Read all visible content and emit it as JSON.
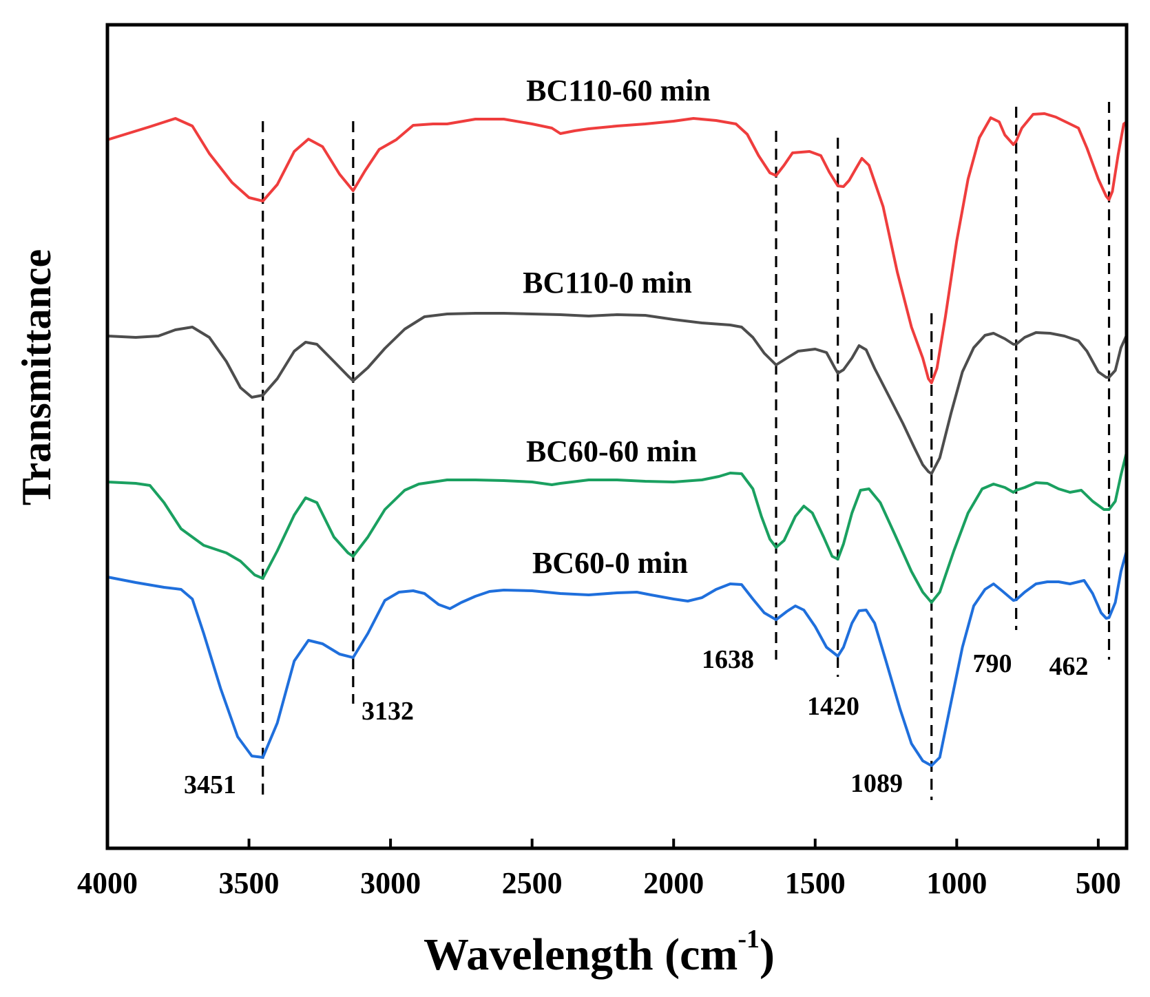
{
  "chart_data": {
    "type": "line",
    "xlabel": "Wavelength (cm",
    "xlabel_sup": "-1",
    "xlabel_close": ")",
    "ylabel": "Transmittance",
    "xlim": [
      4000,
      400
    ],
    "x_ticks": [
      4000,
      3500,
      3000,
      2500,
      2000,
      1500,
      1000,
      500
    ],
    "yaxis_ticks_shown": false,
    "series": [
      {
        "name": "BC110-60 min",
        "color": "#ef3d3d",
        "points": [
          [
            4000,
            203
          ],
          [
            3850,
            184
          ],
          [
            3760,
            172
          ],
          [
            3700,
            183
          ],
          [
            3640,
            223
          ],
          [
            3560,
            265
          ],
          [
            3500,
            287
          ],
          [
            3451,
            292
          ],
          [
            3400,
            268
          ],
          [
            3340,
            220
          ],
          [
            3290,
            202
          ],
          [
            3240,
            213
          ],
          [
            3180,
            253
          ],
          [
            3132,
            277
          ],
          [
            3090,
            248
          ],
          [
            3040,
            217
          ],
          [
            2980,
            203
          ],
          [
            2920,
            182
          ],
          [
            2850,
            180
          ],
          [
            2800,
            180
          ],
          [
            2700,
            173
          ],
          [
            2600,
            173
          ],
          [
            2500,
            180
          ],
          [
            2430,
            186
          ],
          [
            2400,
            194
          ],
          [
            2350,
            190
          ],
          [
            2300,
            187
          ],
          [
            2200,
            183
          ],
          [
            2100,
            180
          ],
          [
            2000,
            176
          ],
          [
            1930,
            172
          ],
          [
            1850,
            175
          ],
          [
            1780,
            180
          ],
          [
            1740,
            195
          ],
          [
            1700,
            226
          ],
          [
            1660,
            251
          ],
          [
            1638,
            255
          ],
          [
            1610,
            240
          ],
          [
            1580,
            222
          ],
          [
            1520,
            220
          ],
          [
            1480,
            226
          ],
          [
            1450,
            250
          ],
          [
            1420,
            270
          ],
          [
            1400,
            271
          ],
          [
            1380,
            262
          ],
          [
            1355,
            244
          ],
          [
            1335,
            230
          ],
          [
            1310,
            240
          ],
          [
            1260,
            300
          ],
          [
            1210,
            395
          ],
          [
            1160,
            475
          ],
          [
            1120,
            520
          ],
          [
            1100,
            550
          ],
          [
            1089,
            556
          ],
          [
            1070,
            535
          ],
          [
            1040,
            460
          ],
          [
            1000,
            350
          ],
          [
            960,
            260
          ],
          [
            920,
            200
          ],
          [
            880,
            171
          ],
          [
            850,
            177
          ],
          [
            830,
            196
          ],
          [
            800,
            210
          ],
          [
            790,
            205
          ],
          [
            770,
            186
          ],
          [
            730,
            166
          ],
          [
            690,
            165
          ],
          [
            650,
            170
          ],
          [
            600,
            180
          ],
          [
            570,
            186
          ],
          [
            540,
            215
          ],
          [
            500,
            260
          ],
          [
            472,
            285
          ],
          [
            462,
            290
          ],
          [
            450,
            278
          ],
          [
            430,
            225
          ],
          [
            410,
            180
          ],
          [
            400,
            177
          ]
        ]
      },
      {
        "name": "BC110-0 min",
        "color": "#4d4d4d",
        "points": [
          [
            4000,
            488
          ],
          [
            3900,
            490
          ],
          [
            3820,
            488
          ],
          [
            3760,
            479
          ],
          [
            3700,
            475
          ],
          [
            3640,
            490
          ],
          [
            3580,
            525
          ],
          [
            3530,
            563
          ],
          [
            3490,
            577
          ],
          [
            3451,
            574
          ],
          [
            3400,
            550
          ],
          [
            3340,
            510
          ],
          [
            3300,
            497
          ],
          [
            3260,
            500
          ],
          [
            3200,
            525
          ],
          [
            3150,
            546
          ],
          [
            3132,
            553
          ],
          [
            3080,
            534
          ],
          [
            3020,
            506
          ],
          [
            2950,
            478
          ],
          [
            2880,
            460
          ],
          [
            2800,
            456
          ],
          [
            2700,
            455
          ],
          [
            2600,
            455
          ],
          [
            2500,
            456
          ],
          [
            2400,
            457
          ],
          [
            2300,
            459
          ],
          [
            2200,
            457
          ],
          [
            2100,
            458
          ],
          [
            2000,
            464
          ],
          [
            1900,
            469
          ],
          [
            1800,
            472
          ],
          [
            1760,
            475
          ],
          [
            1720,
            490
          ],
          [
            1680,
            513
          ],
          [
            1638,
            530
          ],
          [
            1600,
            520
          ],
          [
            1560,
            510
          ],
          [
            1500,
            507
          ],
          [
            1460,
            512
          ],
          [
            1430,
            535
          ],
          [
            1420,
            542
          ],
          [
            1400,
            537
          ],
          [
            1370,
            520
          ],
          [
            1345,
            502
          ],
          [
            1320,
            508
          ],
          [
            1290,
            535
          ],
          [
            1240,
            575
          ],
          [
            1190,
            615
          ],
          [
            1150,
            650
          ],
          [
            1120,
            675
          ],
          [
            1100,
            685
          ],
          [
            1089,
            688
          ],
          [
            1060,
            665
          ],
          [
            1020,
            600
          ],
          [
            980,
            540
          ],
          [
            940,
            505
          ],
          [
            900,
            487
          ],
          [
            870,
            484
          ],
          [
            830,
            492
          ],
          [
            800,
            500
          ],
          [
            790,
            500
          ],
          [
            760,
            490
          ],
          [
            720,
            483
          ],
          [
            670,
            484
          ],
          [
            620,
            488
          ],
          [
            570,
            495
          ],
          [
            540,
            510
          ],
          [
            500,
            540
          ],
          [
            472,
            548
          ],
          [
            462,
            548
          ],
          [
            440,
            538
          ],
          [
            420,
            505
          ],
          [
            400,
            487
          ]
        ]
      },
      {
        "name": "BC60-60 min",
        "color": "#1aa060",
        "points": [
          [
            4000,
            700
          ],
          [
            3900,
            702
          ],
          [
            3850,
            705
          ],
          [
            3800,
            730
          ],
          [
            3740,
            768
          ],
          [
            3660,
            792
          ],
          [
            3580,
            803
          ],
          [
            3530,
            815
          ],
          [
            3480,
            835
          ],
          [
            3451,
            840
          ],
          [
            3400,
            800
          ],
          [
            3340,
            748
          ],
          [
            3300,
            723
          ],
          [
            3260,
            730
          ],
          [
            3200,
            780
          ],
          [
            3150,
            803
          ],
          [
            3132,
            808
          ],
          [
            3080,
            780
          ],
          [
            3020,
            740
          ],
          [
            2950,
            712
          ],
          [
            2900,
            703
          ],
          [
            2800,
            697
          ],
          [
            2700,
            697
          ],
          [
            2600,
            698
          ],
          [
            2500,
            700
          ],
          [
            2430,
            704
          ],
          [
            2400,
            702
          ],
          [
            2300,
            697
          ],
          [
            2200,
            697
          ],
          [
            2100,
            699
          ],
          [
            2000,
            700
          ],
          [
            1900,
            697
          ],
          [
            1840,
            692
          ],
          [
            1800,
            687
          ],
          [
            1760,
            688
          ],
          [
            1720,
            710
          ],
          [
            1690,
            750
          ],
          [
            1660,
            783
          ],
          [
            1638,
            795
          ],
          [
            1610,
            785
          ],
          [
            1570,
            750
          ],
          [
            1540,
            735
          ],
          [
            1510,
            745
          ],
          [
            1470,
            780
          ],
          [
            1440,
            808
          ],
          [
            1420,
            812
          ],
          [
            1400,
            790
          ],
          [
            1370,
            745
          ],
          [
            1340,
            712
          ],
          [
            1310,
            710
          ],
          [
            1270,
            730
          ],
          [
            1220,
            775
          ],
          [
            1160,
            830
          ],
          [
            1120,
            860
          ],
          [
            1089,
            875
          ],
          [
            1060,
            860
          ],
          [
            1010,
            800
          ],
          [
            960,
            745
          ],
          [
            910,
            710
          ],
          [
            870,
            703
          ],
          [
            830,
            708
          ],
          [
            800,
            715
          ],
          [
            790,
            712
          ],
          [
            760,
            708
          ],
          [
            720,
            701
          ],
          [
            680,
            702
          ],
          [
            640,
            710
          ],
          [
            600,
            715
          ],
          [
            560,
            712
          ],
          [
            520,
            728
          ],
          [
            480,
            740
          ],
          [
            462,
            740
          ],
          [
            440,
            728
          ],
          [
            420,
            690
          ],
          [
            400,
            657
          ]
        ]
      },
      {
        "name": "BC60-0 min",
        "color": "#1f6fdc",
        "points": [
          [
            4000,
            838
          ],
          [
            3900,
            846
          ],
          [
            3800,
            853
          ],
          [
            3740,
            856
          ],
          [
            3700,
            870
          ],
          [
            3660,
            920
          ],
          [
            3600,
            1000
          ],
          [
            3540,
            1070
          ],
          [
            3490,
            1098
          ],
          [
            3451,
            1100
          ],
          [
            3400,
            1050
          ],
          [
            3340,
            960
          ],
          [
            3290,
            930
          ],
          [
            3240,
            935
          ],
          [
            3180,
            950
          ],
          [
            3132,
            955
          ],
          [
            3080,
            920
          ],
          [
            3020,
            872
          ],
          [
            2970,
            860
          ],
          [
            2920,
            858
          ],
          [
            2880,
            862
          ],
          [
            2830,
            878
          ],
          [
            2790,
            884
          ],
          [
            2750,
            875
          ],
          [
            2700,
            866
          ],
          [
            2650,
            859
          ],
          [
            2600,
            857
          ],
          [
            2500,
            858
          ],
          [
            2400,
            862
          ],
          [
            2300,
            864
          ],
          [
            2200,
            861
          ],
          [
            2130,
            860
          ],
          [
            2080,
            864
          ],
          [
            2000,
            870
          ],
          [
            1950,
            873
          ],
          [
            1900,
            868
          ],
          [
            1850,
            856
          ],
          [
            1800,
            848
          ],
          [
            1760,
            849
          ],
          [
            1720,
            870
          ],
          [
            1680,
            890
          ],
          [
            1638,
            900
          ],
          [
            1600,
            888
          ],
          [
            1570,
            880
          ],
          [
            1540,
            886
          ],
          [
            1500,
            910
          ],
          [
            1460,
            940
          ],
          [
            1420,
            953
          ],
          [
            1400,
            940
          ],
          [
            1370,
            905
          ],
          [
            1345,
            887
          ],
          [
            1320,
            886
          ],
          [
            1290,
            905
          ],
          [
            1250,
            960
          ],
          [
            1200,
            1030
          ],
          [
            1160,
            1080
          ],
          [
            1120,
            1105
          ],
          [
            1089,
            1112
          ],
          [
            1060,
            1100
          ],
          [
            1020,
            1020
          ],
          [
            980,
            940
          ],
          [
            940,
            880
          ],
          [
            900,
            856
          ],
          [
            870,
            848
          ],
          [
            840,
            858
          ],
          [
            800,
            872
          ],
          [
            790,
            871
          ],
          [
            760,
            860
          ],
          [
            720,
            848
          ],
          [
            680,
            845
          ],
          [
            640,
            845
          ],
          [
            600,
            848
          ],
          [
            570,
            845
          ],
          [
            550,
            843
          ],
          [
            520,
            862
          ],
          [
            490,
            890
          ],
          [
            472,
            898
          ],
          [
            462,
            897
          ],
          [
            440,
            875
          ],
          [
            420,
            830
          ],
          [
            400,
            800
          ]
        ]
      }
    ],
    "peak_lines": [
      {
        "x": 3451,
        "label": "3451"
      },
      {
        "x": 3132,
        "label": "3132"
      },
      {
        "x": 1638,
        "label": "1638"
      },
      {
        "x": 1420,
        "label": "1420"
      },
      {
        "x": 1089,
        "label": "1089"
      },
      {
        "x": 790,
        "label": "790"
      },
      {
        "x": 462,
        "label": "462"
      }
    ]
  }
}
